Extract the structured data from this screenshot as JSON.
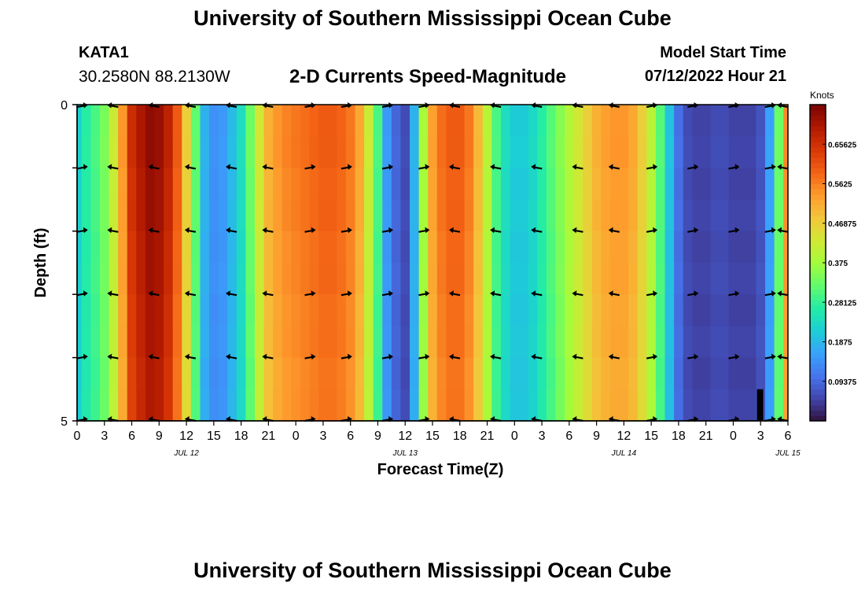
{
  "header": {
    "title": "University of Southern Mississippi Ocean Cube",
    "station": "KATA1",
    "coords": "30.2580N  88.2130W",
    "subtitle": "2-D Currents Speed-Magnitude",
    "model_start_label": "Model Start Time",
    "model_start_value": "07/12/2022 Hour 21"
  },
  "footer": {
    "title": "University of Southern Mississippi Ocean Cube"
  },
  "chart_data": {
    "type": "heatmap",
    "title": "2-D Currents Speed-Magnitude",
    "xlabel": "Forecast Time(Z)",
    "ylabel": "Depth (ft)",
    "y_ticks": [
      "0",
      "5"
    ],
    "ylim": [
      0,
      5
    ],
    "x_ticks": [
      "0",
      "3",
      "6",
      "9",
      "12",
      "15",
      "18",
      "21",
      "0",
      "3",
      "6",
      "9",
      "12",
      "15",
      "18",
      "21",
      "0",
      "3",
      "6",
      "9",
      "12",
      "15",
      "18",
      "21",
      "0",
      "3",
      "6"
    ],
    "date_labels": [
      {
        "label": "JUL 12",
        "hour": 12
      },
      {
        "label": "JUL 13",
        "hour": 36
      },
      {
        "label": "JUL 14",
        "hour": 60
      },
      {
        "label": "JUL 15",
        "hour": 78
      }
    ],
    "x_range_hours": [
      0,
      78
    ],
    "colorbar": {
      "label": "Knots",
      "min": 0.0,
      "max": 0.75,
      "ticks": [
        "0.09375",
        "0.1875",
        "0.28125",
        "0.375",
        "0.46875",
        "0.5625",
        "0.65625"
      ],
      "colors": [
        "#30123b",
        "#4145ab",
        "#4675ed",
        "#39a2fc",
        "#1bcfd4",
        "#24eca6",
        "#61fc6c",
        "#a4fc3b",
        "#d1e834",
        "#f3c63a",
        "#fe9b2d",
        "#f36315",
        "#d93806",
        "#b11901",
        "#7a0403"
      ]
    },
    "speed_by_hour": [
      {
        "h": 0,
        "v": 0.22
      },
      {
        "h": 1,
        "v": 0.27
      },
      {
        "h": 2,
        "v": 0.3
      },
      {
        "h": 3,
        "v": 0.34
      },
      {
        "h": 4,
        "v": 0.42
      },
      {
        "h": 5,
        "v": 0.54
      },
      {
        "h": 6,
        "v": 0.66
      },
      {
        "h": 7,
        "v": 0.7
      },
      {
        "h": 8,
        "v": 0.73
      },
      {
        "h": 9,
        "v": 0.72
      },
      {
        "h": 10,
        "v": 0.68
      },
      {
        "h": 11,
        "v": 0.6
      },
      {
        "h": 12,
        "v": 0.47
      },
      {
        "h": 13,
        "v": 0.32
      },
      {
        "h": 14,
        "v": 0.18
      },
      {
        "h": 15,
        "v": 0.14
      },
      {
        "h": 16,
        "v": 0.15
      },
      {
        "h": 17,
        "v": 0.19
      },
      {
        "h": 18,
        "v": 0.24
      },
      {
        "h": 19,
        "v": 0.33
      },
      {
        "h": 20,
        "v": 0.43
      },
      {
        "h": 21,
        "v": 0.51
      },
      {
        "h": 22,
        "v": 0.54
      },
      {
        "h": 23,
        "v": 0.56
      },
      {
        "h": 24,
        "v": 0.57
      },
      {
        "h": 25,
        "v": 0.58
      },
      {
        "h": 26,
        "v": 0.59
      },
      {
        "h": 27,
        "v": 0.6
      },
      {
        "h": 28,
        "v": 0.6
      },
      {
        "h": 29,
        "v": 0.59
      },
      {
        "h": 30,
        "v": 0.57
      },
      {
        "h": 31,
        "v": 0.52
      },
      {
        "h": 32,
        "v": 0.42
      },
      {
        "h": 33,
        "v": 0.3
      },
      {
        "h": 34,
        "v": 0.15
      },
      {
        "h": 35,
        "v": 0.09
      },
      {
        "h": 36,
        "v": 0.06
      },
      {
        "h": 37,
        "v": 0.18
      },
      {
        "h": 38,
        "v": 0.38
      },
      {
        "h": 39,
        "v": 0.53
      },
      {
        "h": 40,
        "v": 0.58
      },
      {
        "h": 41,
        "v": 0.6
      },
      {
        "h": 42,
        "v": 0.6
      },
      {
        "h": 43,
        "v": 0.57
      },
      {
        "h": 44,
        "v": 0.5
      },
      {
        "h": 45,
        "v": 0.4
      },
      {
        "h": 46,
        "v": 0.3
      },
      {
        "h": 47,
        "v": 0.24
      },
      {
        "h": 48,
        "v": 0.21
      },
      {
        "h": 49,
        "v": 0.21
      },
      {
        "h": 50,
        "v": 0.23
      },
      {
        "h": 51,
        "v": 0.27
      },
      {
        "h": 52,
        "v": 0.31
      },
      {
        "h": 53,
        "v": 0.35
      },
      {
        "h": 54,
        "v": 0.39
      },
      {
        "h": 55,
        "v": 0.43
      },
      {
        "h": 56,
        "v": 0.47
      },
      {
        "h": 57,
        "v": 0.51
      },
      {
        "h": 58,
        "v": 0.53
      },
      {
        "h": 59,
        "v": 0.54
      },
      {
        "h": 60,
        "v": 0.54
      },
      {
        "h": 61,
        "v": 0.52
      },
      {
        "h": 62,
        "v": 0.47
      },
      {
        "h": 63,
        "v": 0.4
      },
      {
        "h": 64,
        "v": 0.31
      },
      {
        "h": 65,
        "v": 0.2
      },
      {
        "h": 66,
        "v": 0.1
      },
      {
        "h": 67,
        "v": 0.06
      },
      {
        "h": 68,
        "v": 0.05
      },
      {
        "h": 69,
        "v": 0.05
      },
      {
        "h": 70,
        "v": 0.06
      },
      {
        "h": 71,
        "v": 0.06
      },
      {
        "h": 72,
        "v": 0.05
      },
      {
        "h": 73,
        "v": 0.05
      },
      {
        "h": 74,
        "v": 0.05
      },
      {
        "h": 75,
        "v": 0.07
      },
      {
        "h": 76,
        "v": 0.16
      },
      {
        "h": 77,
        "v": 0.33
      },
      {
        "h": 78,
        "v": 0.55
      }
    ],
    "vector_rows_depth_ft": [
      0,
      1,
      2,
      3,
      4,
      5
    ],
    "vectors": [
      {
        "h": 0.5,
        "dir": "E"
      },
      {
        "h": 4,
        "dir": "W"
      },
      {
        "h": 8.5,
        "dir": "W"
      },
      {
        "h": 12.5,
        "dir": "W"
      },
      {
        "h": 17,
        "dir": "W"
      },
      {
        "h": 21,
        "dir": "W"
      },
      {
        "h": 25.5,
        "dir": "E"
      },
      {
        "h": 29.5,
        "dir": "E"
      },
      {
        "h": 34,
        "dir": "E"
      },
      {
        "h": 38,
        "dir": "E"
      },
      {
        "h": 41.5,
        "dir": "W"
      },
      {
        "h": 46,
        "dir": "W"
      },
      {
        "h": 50.5,
        "dir": "W"
      },
      {
        "h": 55,
        "dir": "W"
      },
      {
        "h": 59,
        "dir": "W"
      },
      {
        "h": 63,
        "dir": "E"
      },
      {
        "h": 67.5,
        "dir": "E"
      },
      {
        "h": 72,
        "dir": "E"
      },
      {
        "h": 76,
        "dir": "E"
      },
      {
        "h": 77.5,
        "dir": "W"
      }
    ],
    "extra_arrows": [
      {
        "h": 25.5,
        "row": 1,
        "dir": "E"
      }
    ]
  }
}
